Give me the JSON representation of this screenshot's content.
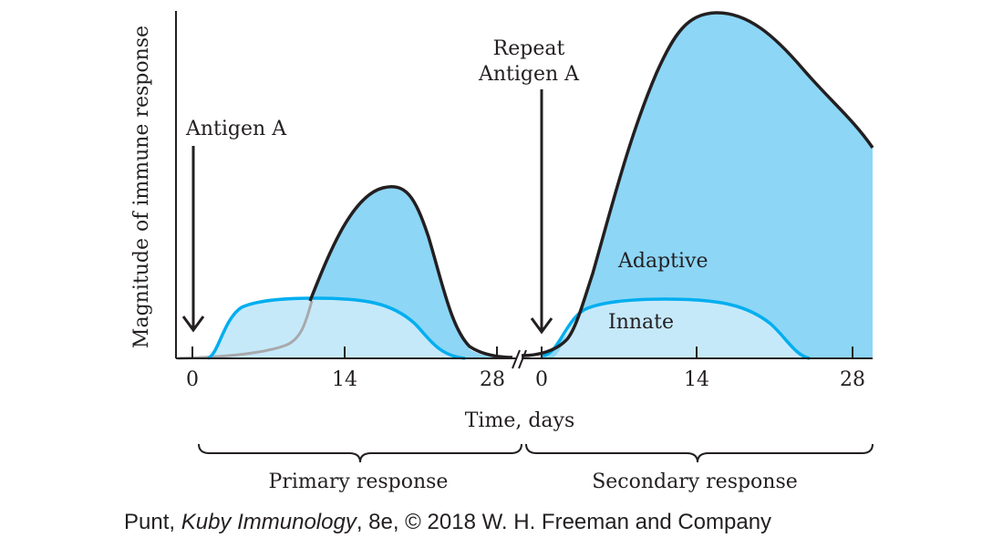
{
  "ylabel": "Magnitude of immune response",
  "xlabel": "Time, days",
  "primary_ticks": [
    "0",
    "14",
    "28"
  ],
  "secondary_ticks": [
    "0",
    "14",
    "28"
  ],
  "annotations": {
    "antigen_a": "Antigen A",
    "repeat_line1": "Repeat",
    "repeat_line2": "Antigen A",
    "adaptive": "Adaptive",
    "innate": "Innate"
  },
  "braces": {
    "primary": "Primary response",
    "secondary": "Secondary response"
  },
  "caption": {
    "author": "Punt, ",
    "book": "Kuby Immunology",
    "rest": ", 8e, © 2018 W. H. Freeman and Company"
  },
  "colors": {
    "adaptive_fill": "#8dd6f6",
    "innate_fill": "#c6e9fa",
    "innate_line": "#00aeef",
    "outline": "#231f20"
  }
}
